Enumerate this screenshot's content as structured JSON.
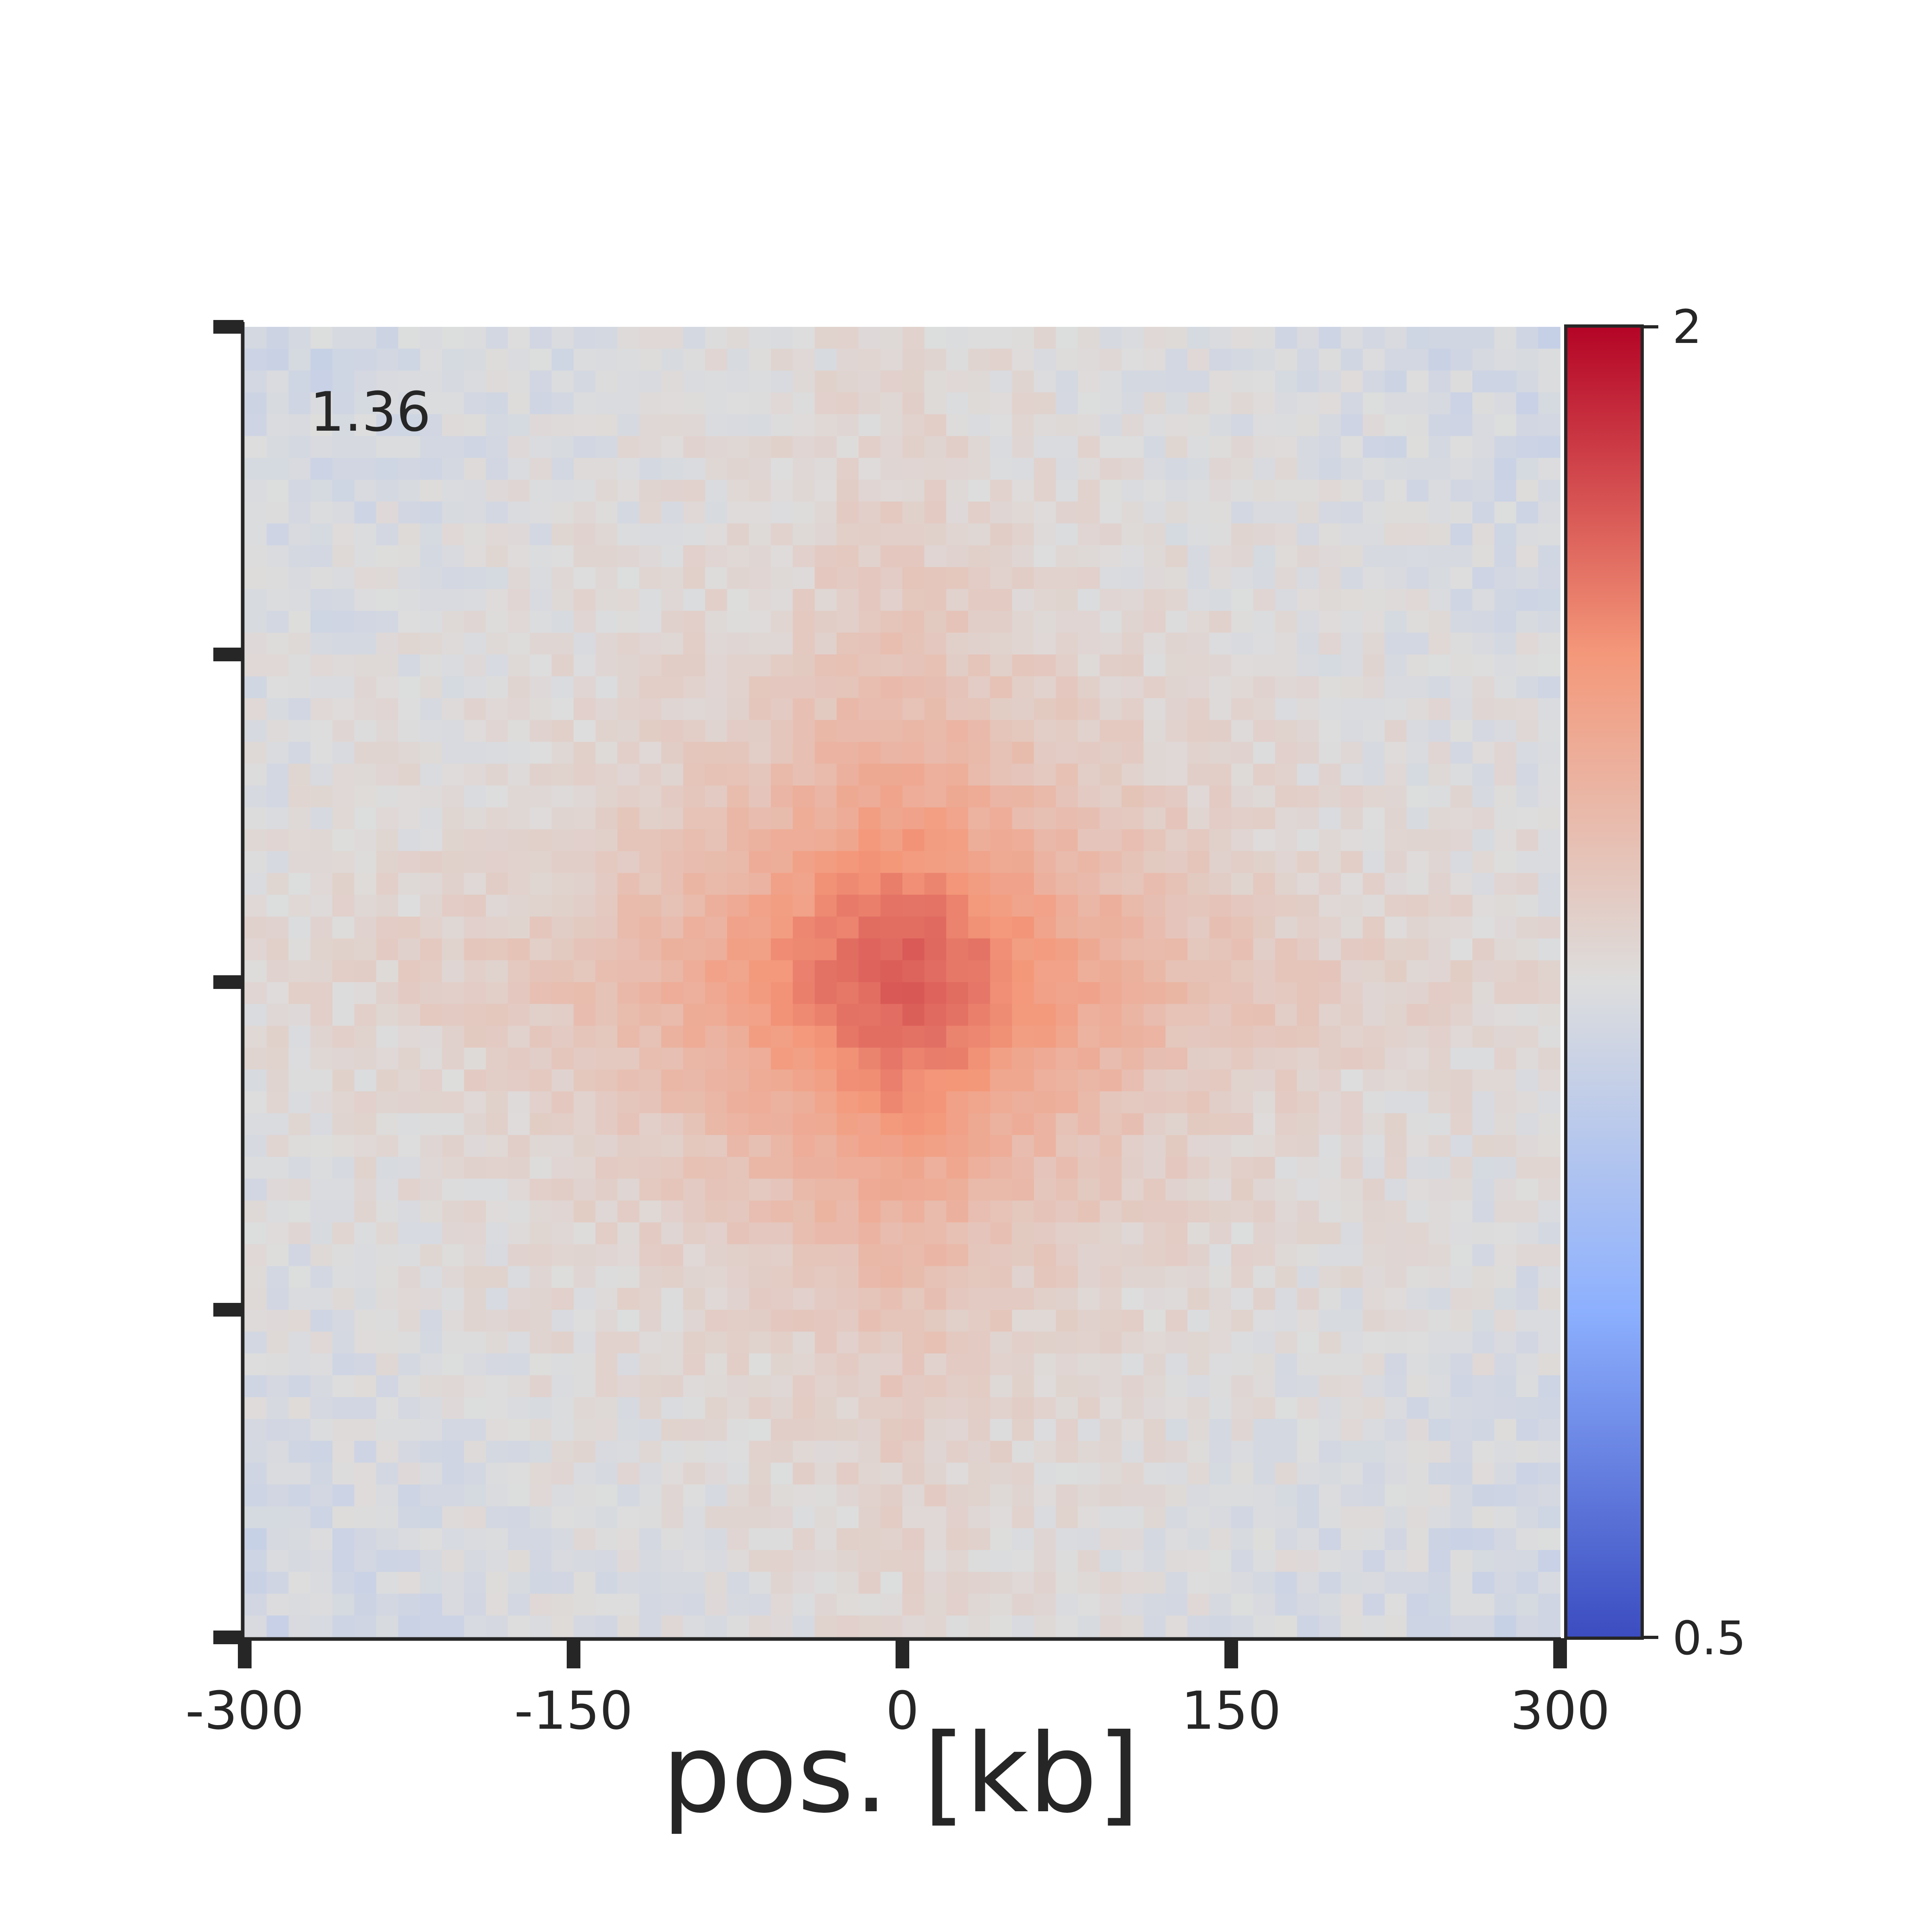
{
  "chart_data": {
    "type": "heatmap",
    "title": "",
    "xlabel": "pos. [kb]",
    "ylabel": "",
    "xlim": [
      -300,
      300
    ],
    "ylim": [
      -300,
      300
    ],
    "x_ticks": [
      "-300",
      "-150",
      "0",
      "150",
      "300"
    ],
    "y_tick_positions": [
      300,
      150,
      0,
      -150,
      -300
    ],
    "grid": false,
    "bins": 60,
    "annotation": "1.36",
    "center_value_estimate": 1.36,
    "background_value_estimate": 1.0,
    "pattern": "enrichment centered at (0,0) with cross-shaped stripes along x=0 and y=0",
    "colorbar": {
      "cmap": "coolwarm",
      "vmin": 0.5,
      "vmax": 2,
      "tick_labels": [
        "2",
        "0.5"
      ],
      "scale": "log"
    }
  }
}
